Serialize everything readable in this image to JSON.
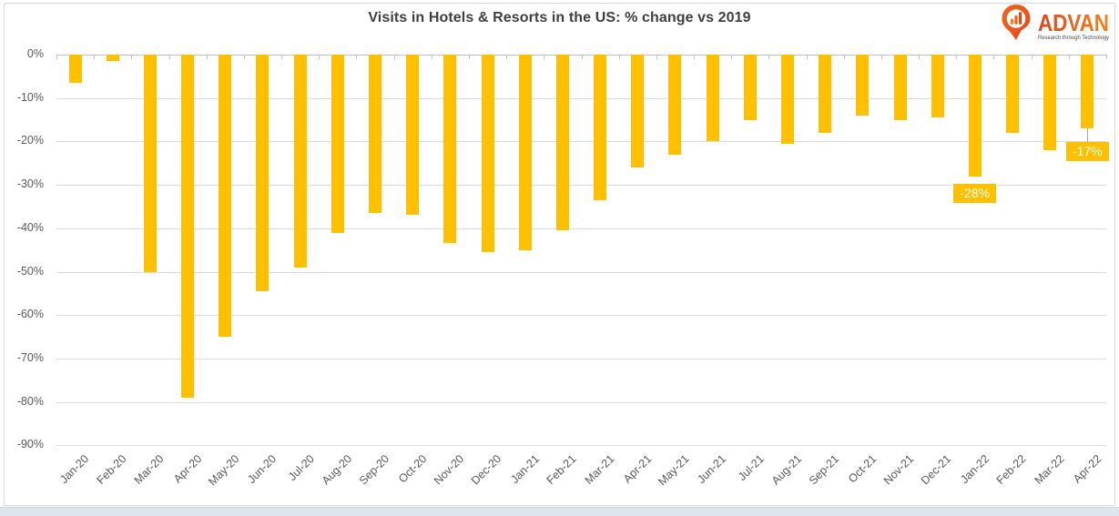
{
  "title": "Visits in Hotels & Resorts in the US: % change vs 2019",
  "logo": {
    "name": "ADVAN",
    "tagline": "Research through Technology",
    "color_primary": "#e2491a",
    "color_secondary": "#f58220"
  },
  "chart_data": {
    "type": "bar",
    "title": "Visits in Hotels & Resorts in the US: % change vs 2019",
    "xlabel": "",
    "ylabel": "",
    "categories": [
      "Jan-20",
      "Feb-20",
      "Mar-20",
      "Apr-20",
      "May-20",
      "Jun-20",
      "Jul-20",
      "Aug-20",
      "Sep-20",
      "Oct-20",
      "Nov-20",
      "Dec-20",
      "Jan-21",
      "Feb-21",
      "Mar-21",
      "Apr-21",
      "May-21",
      "Jun-21",
      "Jul-21",
      "Aug-21",
      "Sep-21",
      "Oct-21",
      "Nov-21",
      "Dec-21",
      "Jan-22",
      "Feb-22",
      "Mar-22",
      "Apr-22"
    ],
    "values": [
      -6.5,
      -1.5,
      -50,
      -79,
      -65,
      -54.5,
      -49,
      -41,
      -36.5,
      -37,
      -43.5,
      -45.5,
      -45,
      -40.5,
      -33.5,
      -26,
      -23,
      -20,
      -15,
      -20.5,
      -18,
      -14,
      -15,
      -14.5,
      -28,
      -18,
      -22,
      -17
    ],
    "y_ticks": [
      "0%",
      "-10%",
      "-20%",
      "-30%",
      "-40%",
      "-50%",
      "-60%",
      "-70%",
      "-80%",
      "-90%"
    ],
    "ylim": [
      -90,
      0
    ],
    "grid": true,
    "legend": false,
    "bar_color": "#FFC000",
    "data_labels": [
      {
        "category": "Jan-22",
        "text": "-28%",
        "leader": false
      },
      {
        "category": "Apr-22",
        "text": "-17%",
        "leader": true
      }
    ]
  }
}
